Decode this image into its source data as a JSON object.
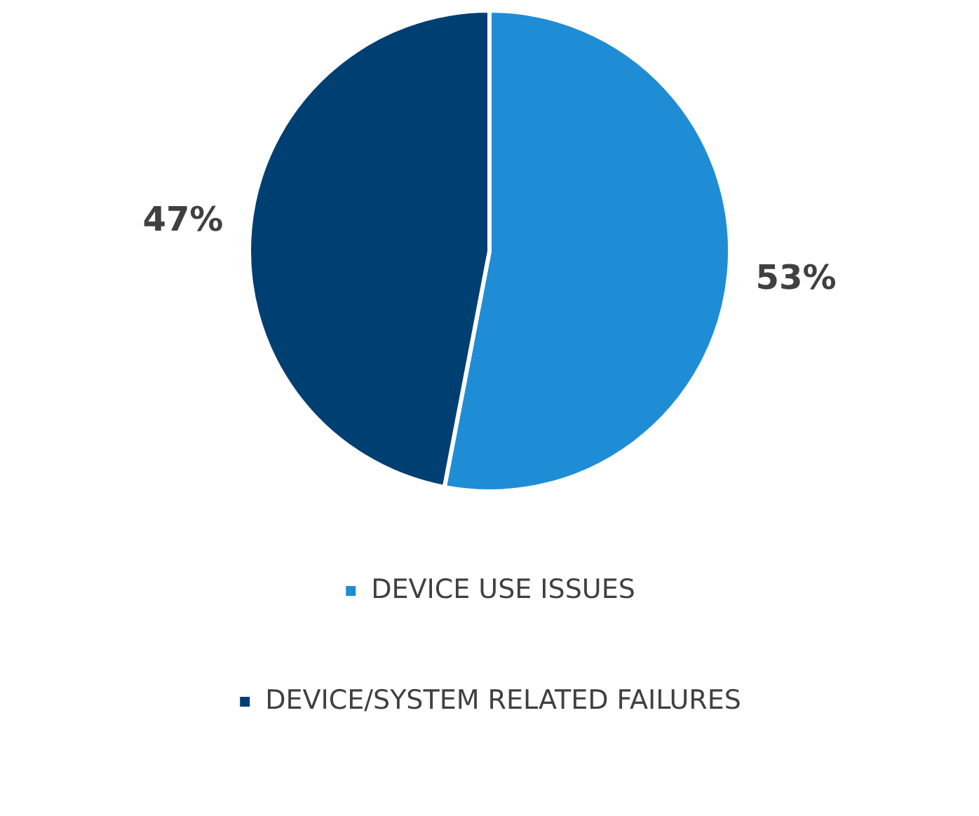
{
  "chart_data": {
    "type": "pie",
    "categories": [
      "DEVICE USE ISSUES",
      "DEVICE/SYSTEM RELATED FAILURES"
    ],
    "values": [
      53,
      47
    ],
    "colors": [
      "#1f8dd6",
      "#003f72"
    ],
    "value_labels": [
      "53%",
      "47%"
    ],
    "legend": "bottom"
  }
}
